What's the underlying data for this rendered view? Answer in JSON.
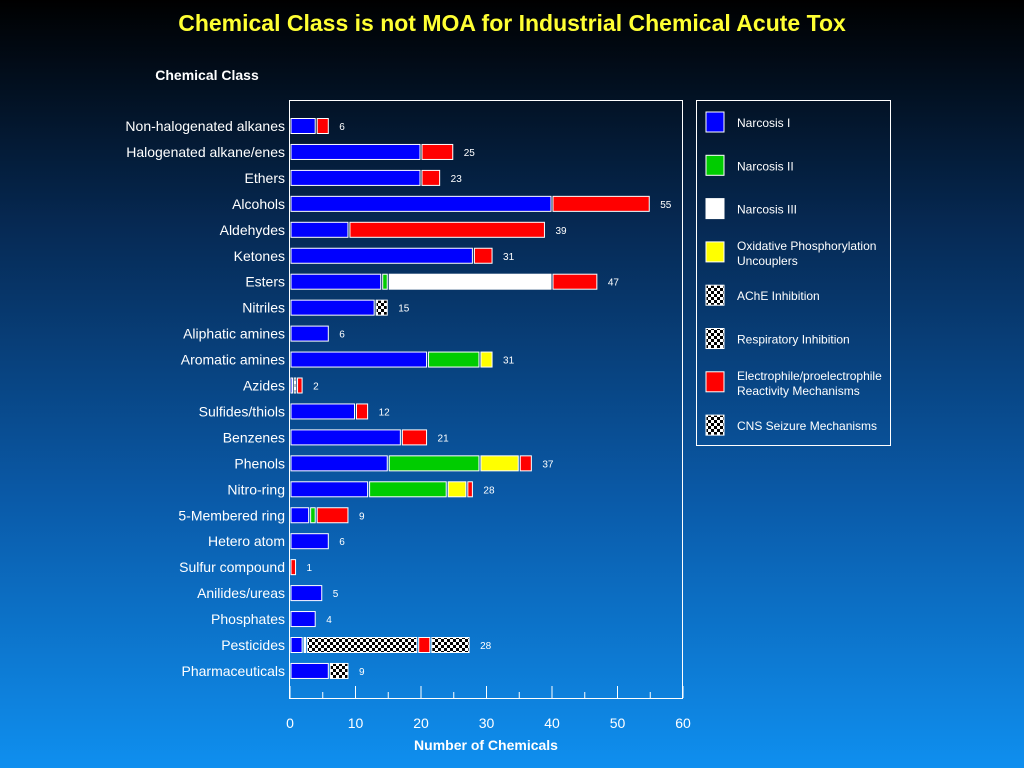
{
  "slide_title": "Chemical Class is not MOA for Industrial Chemical Acute Tox",
  "chart_data": {
    "type": "bar",
    "stacked": true,
    "orientation": "horizontal",
    "title": "Chemical Class is not MOA for Industrial Chemical Acute Tox",
    "category_axis_title": "Chemical Class",
    "xlabel": "Number of Chemicals",
    "xlim": [
      0,
      60
    ],
    "xticks": [
      0,
      10,
      20,
      30,
      40,
      50,
      60
    ],
    "legend_position": "right",
    "categories": [
      "Non-halogenated alkanes",
      "Halogenated alkane/enes",
      "Ethers",
      "Alcohols",
      "Aldehydes",
      "Ketones",
      "Esters",
      "Nitriles",
      "Aliphatic amines",
      "Aromatic amines",
      "Azides",
      "Sulfides/thiols",
      "Benzenes",
      "Phenols",
      "Nitro-ring",
      "5-Membered ring",
      "Hetero atom",
      "Sulfur compound",
      "Anilides/ureas",
      "Phosphates",
      "Pesticides",
      "Pharmaceuticals"
    ],
    "totals": [
      6,
      25,
      23,
      55,
      39,
      31,
      47,
      15,
      6,
      31,
      2,
      12,
      21,
      37,
      28,
      9,
      6,
      1,
      5,
      4,
      28,
      9
    ],
    "series": [
      {
        "name": "Narcosis I",
        "color": "#0000ff",
        "pattern": "solid",
        "values": [
          4,
          20,
          20,
          40,
          9,
          28,
          14,
          13,
          6,
          21,
          0.5,
          10,
          17,
          15,
          12,
          3,
          6,
          0,
          5,
          4,
          2,
          6
        ]
      },
      {
        "name": "Narcosis II",
        "color": "#00cc00",
        "pattern": "solid",
        "values": [
          0,
          0,
          0,
          0,
          0,
          0,
          1,
          0,
          0,
          8,
          0,
          0,
          0,
          14,
          12,
          1,
          0,
          0,
          0,
          0,
          0,
          0
        ]
      },
      {
        "name": "Narcosis III",
        "color": "#ffffff",
        "pattern": "solid",
        "values": [
          0,
          0,
          0,
          0,
          0,
          0,
          25,
          0,
          0,
          0,
          0,
          0,
          0,
          0,
          0,
          0,
          0,
          0,
          0,
          0,
          0.5,
          0
        ]
      },
      {
        "name": "Oxidative Phosphorylation Uncouplers",
        "color": "#ffff00",
        "pattern": "solid",
        "values": [
          0,
          0,
          0,
          0,
          0,
          0,
          0,
          0,
          0,
          2,
          0,
          0,
          0,
          6,
          3,
          0,
          0,
          0,
          0,
          0,
          0,
          0
        ]
      },
      {
        "name": "AChE Inhibition",
        "color": "#000000",
        "pattern": "checker",
        "values": [
          0,
          0,
          0,
          0,
          0,
          0,
          0,
          0,
          0,
          0,
          0,
          0,
          0,
          0,
          0,
          0,
          0,
          0,
          0,
          0,
          17,
          0
        ]
      },
      {
        "name": "Respiratory Inhibition",
        "color": "#000000",
        "pattern": "checker",
        "values": [
          0,
          0,
          0,
          0,
          0,
          0,
          0,
          2,
          0,
          0,
          0.5,
          0,
          0,
          0,
          0,
          0,
          0,
          0,
          0,
          0,
          0,
          0
        ]
      },
      {
        "name": "Electrophile/proelectrophile Reactivity Mechanisms",
        "color": "#ff0000",
        "pattern": "solid",
        "values": [
          2,
          5,
          3,
          15,
          30,
          3,
          7,
          0,
          0,
          0,
          1,
          2,
          4,
          2,
          1,
          5,
          0,
          1,
          0,
          0,
          2,
          0
        ]
      },
      {
        "name": "CNS Seizure Mechanisms",
        "color": "#000000",
        "pattern": "checker",
        "values": [
          0,
          0,
          0,
          0,
          0,
          0,
          0,
          0,
          0,
          0,
          0,
          0,
          0,
          0,
          0,
          0,
          0,
          0,
          0,
          0,
          6,
          3
        ]
      }
    ]
  },
  "legend": [
    {
      "lines": [
        "Narcosis I"
      ]
    },
    {
      "lines": [
        "Narcosis II"
      ]
    },
    {
      "lines": [
        "Narcosis III"
      ]
    },
    {
      "lines": [
        "Oxidative Phosphorylation",
        "Uncouplers"
      ]
    },
    {
      "lines": [
        "AChE Inhibition"
      ]
    },
    {
      "lines": [
        "Respiratory Inhibition"
      ]
    },
    {
      "lines": [
        "Electrophile/proelectrophile",
        "Reactivity Mechanisms"
      ]
    },
    {
      "lines": [
        "CNS Seizure Mechanisms"
      ]
    }
  ]
}
